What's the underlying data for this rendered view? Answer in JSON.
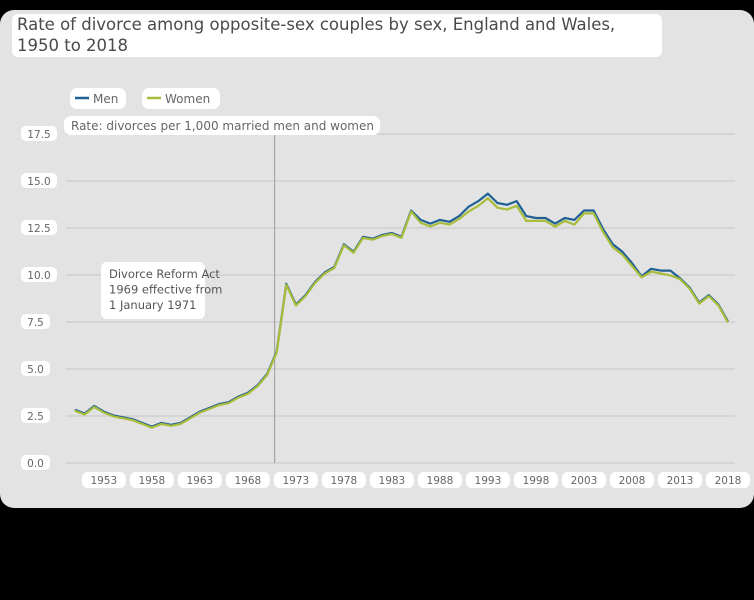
{
  "chart_data": {
    "type": "line",
    "title": "Rate of divorce among opposite-sex couples by sex, England and Wales, 1950 to 2018",
    "ylabel": "Rate: divorces per 1,000 married men and women",
    "xlabel": "",
    "xlim": [
      1950,
      2018
    ],
    "ylim": [
      0,
      17.5
    ],
    "yticks": [
      "0.0",
      "2.5",
      "5.0",
      "7.5",
      "10.0",
      "12.5",
      "15.0",
      "17.5"
    ],
    "xticks": [
      "1953",
      "1958",
      "1963",
      "1968",
      "1973",
      "1978",
      "1983",
      "1988",
      "1993",
      "1998",
      "2003",
      "2008",
      "2013",
      "2018"
    ],
    "grid": true,
    "legend_position": "top-left",
    "x": [
      1950,
      1951,
      1952,
      1953,
      1954,
      1955,
      1956,
      1957,
      1958,
      1959,
      1960,
      1961,
      1962,
      1963,
      1964,
      1965,
      1966,
      1967,
      1968,
      1969,
      1970,
      1971,
      1972,
      1973,
      1974,
      1975,
      1976,
      1977,
      1978,
      1979,
      1980,
      1981,
      1982,
      1983,
      1984,
      1985,
      1986,
      1987,
      1988,
      1989,
      1990,
      1991,
      1992,
      1993,
      1994,
      1995,
      1996,
      1997,
      1998,
      1999,
      2000,
      2001,
      2002,
      2003,
      2004,
      2005,
      2006,
      2007,
      2008,
      2009,
      2010,
      2011,
      2012,
      2013,
      2014,
      2015,
      2016,
      2017,
      2018
    ],
    "series": [
      {
        "name": "Men",
        "color": "#206095",
        "values": [
          2.8,
          2.6,
          3.0,
          2.7,
          2.5,
          2.4,
          2.3,
          2.1,
          1.9,
          2.1,
          2.0,
          2.1,
          2.4,
          2.7,
          2.9,
          3.1,
          3.2,
          3.5,
          3.7,
          4.1,
          4.7,
          5.9,
          9.5,
          8.4,
          8.9,
          9.6,
          10.1,
          10.4,
          11.6,
          11.2,
          12.0,
          11.9,
          12.1,
          12.2,
          12.0,
          13.4,
          12.9,
          12.7,
          12.9,
          12.8,
          13.1,
          13.6,
          13.9,
          14.3,
          13.8,
          13.7,
          13.9,
          13.1,
          13.0,
          13.0,
          12.7,
          13.0,
          12.9,
          13.4,
          13.4,
          12.4,
          11.6,
          11.2,
          10.6,
          9.9,
          10.3,
          10.2,
          10.2,
          9.8,
          9.3,
          8.5,
          8.9,
          8.4,
          7.5
        ]
      },
      {
        "name": "Women",
        "color": "#a8bd3a",
        "values": [
          2.8,
          2.6,
          3.0,
          2.7,
          2.5,
          2.4,
          2.3,
          2.1,
          1.9,
          2.1,
          2.0,
          2.1,
          2.4,
          2.7,
          2.9,
          3.1,
          3.2,
          3.5,
          3.7,
          4.1,
          4.7,
          5.9,
          9.5,
          8.4,
          8.9,
          9.6,
          10.1,
          10.4,
          11.6,
          11.2,
          12.0,
          11.9,
          12.1,
          12.2,
          12.0,
          13.4,
          12.8,
          12.6,
          12.8,
          12.7,
          13.0,
          13.4,
          13.7,
          14.1,
          13.6,
          13.5,
          13.7,
          12.9,
          12.9,
          12.9,
          12.6,
          12.9,
          12.7,
          13.3,
          13.3,
          12.3,
          11.5,
          11.1,
          10.5,
          9.9,
          10.2,
          10.1,
          10.0,
          9.8,
          9.3,
          8.5,
          8.9,
          8.4,
          7.5
        ]
      }
    ],
    "annotation": {
      "lines": [
        "Divorce Reform Act",
        "1969 effective from",
        "1 January 1971"
      ],
      "x": 1971
    }
  }
}
